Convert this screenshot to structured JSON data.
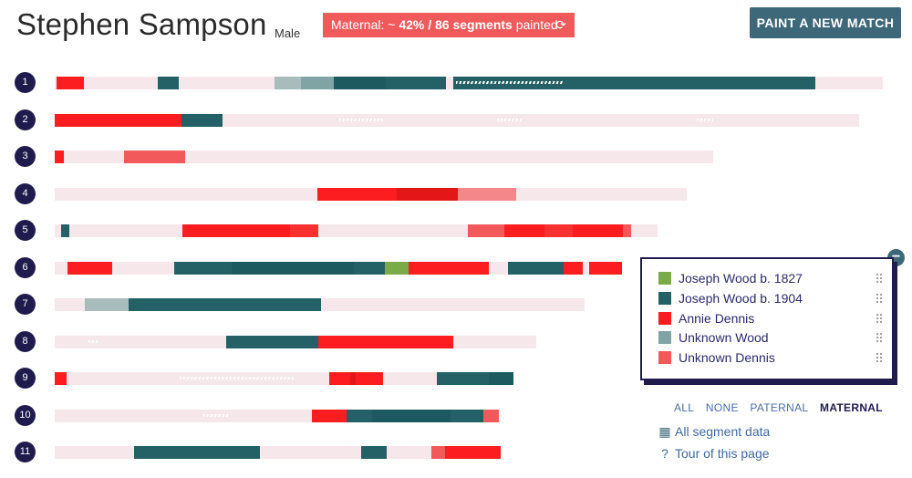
{
  "header": {
    "person_name": "Stephen Sampson",
    "gender": "Male",
    "maternal_prefix": "Maternal: ~ ",
    "maternal_stats": "42% / 86 segments",
    "maternal_suffix": " painted",
    "paint_button_label": "PAINT A NEW MATCH"
  },
  "icons": {
    "refresh": "refresh-icon",
    "collapse": "minus-circle-icon",
    "table": "table-icon",
    "help": "question-circle-icon",
    "drag": "drag-handle-icon"
  },
  "colors": {
    "track": "#f6e7ea",
    "joseph_1827": "#7aab48",
    "joseph_1904": "#236166",
    "annie": "#fb1d1f",
    "unknown_wood": "#80a3a3",
    "unknown_dennis": "#f1595a",
    "badge": "#f05a5b",
    "button": "#3d6879",
    "navy": "#1f1c4d"
  },
  "chromosomes": [
    {
      "label": "1",
      "track": [
        60,
        968
      ],
      "segments": [
        [
          62,
          92,
          "annie"
        ],
        [
          173,
          196,
          "joseph_1904"
        ],
        [
          301,
          330,
          "light_wood"
        ],
        [
          330,
          366,
          "unknown_wood"
        ],
        [
          366,
          423,
          "dark_wood"
        ],
        [
          423,
          489,
          "joseph_1904"
        ],
        [
          497,
          894,
          "joseph_1904"
        ]
      ],
      "hatches": [
        [
          500,
          618
        ]
      ]
    },
    {
      "label": "2",
      "track": [
        60,
        942
      ],
      "segments": [
        [
          60,
          199,
          "annie"
        ],
        [
          199,
          244,
          "joseph_1904"
        ]
      ],
      "hatches": [
        [
          372,
          420
        ],
        [
          545,
          574
        ],
        [
          764,
          782
        ]
      ]
    },
    {
      "label": "3",
      "track": [
        60,
        782
      ],
      "segments": [
        [
          60,
          70,
          "annie"
        ],
        [
          136,
          203,
          "unknown_dennis"
        ]
      ],
      "hatches": []
    },
    {
      "label": "4",
      "track": [
        60,
        753
      ],
      "segments": [
        [
          348,
          435,
          "annie"
        ],
        [
          435,
          502,
          "annie_dark"
        ],
        [
          502,
          566,
          "pink_dennis"
        ]
      ],
      "hatches": []
    },
    {
      "label": "5",
      "track": [
        60,
        721
      ],
      "segments": [
        [
          67,
          76,
          "joseph_1904"
        ],
        [
          200,
          318,
          "annie"
        ],
        [
          318,
          349,
          "annie_light"
        ],
        [
          513,
          553,
          "unknown_dennis"
        ],
        [
          553,
          597,
          "annie"
        ],
        [
          597,
          628,
          "annie_light"
        ],
        [
          628,
          683,
          "annie"
        ],
        [
          683,
          692,
          "unknown_dennis"
        ]
      ],
      "hatches": []
    },
    {
      "label": "6",
      "track": [
        60,
        682
      ],
      "segments": [
        [
          74,
          123,
          "annie"
        ],
        [
          191,
          254,
          "joseph_1904"
        ],
        [
          254,
          388,
          "dark_wood"
        ],
        [
          388,
          422,
          "joseph_1904"
        ],
        [
          422,
          448,
          "joseph_1827"
        ],
        [
          448,
          462,
          "annie"
        ],
        [
          462,
          536,
          "annie"
        ],
        [
          557,
          618,
          "joseph_1904"
        ],
        [
          618,
          639,
          "annie"
        ],
        [
          646,
          682,
          "annie"
        ]
      ],
      "hatches": []
    },
    {
      "label": "7",
      "track": [
        60,
        641
      ],
      "segments": [
        [
          93,
          141,
          "light_wood"
        ],
        [
          141,
          185,
          "joseph_1904"
        ],
        [
          185,
          352,
          "joseph_1904"
        ]
      ],
      "hatches": []
    },
    {
      "label": "8",
      "track": [
        60,
        588
      ],
      "segments": [
        [
          248,
          349,
          "joseph_1904"
        ],
        [
          349,
          497,
          "annie"
        ]
      ],
      "hatches": [
        [
          97,
          109
        ]
      ]
    },
    {
      "label": "9",
      "track": [
        60,
        563
      ],
      "segments": [
        [
          60,
          73,
          "annie"
        ],
        [
          361,
          384,
          "annie"
        ],
        [
          384,
          390,
          "annie_dark"
        ],
        [
          390,
          420,
          "annie"
        ],
        [
          479,
          536,
          "joseph_1904"
        ],
        [
          536,
          563,
          "dark_wood"
        ]
      ],
      "hatches": [
        [
          197,
          322
        ]
      ]
    },
    {
      "label": "10",
      "track": [
        60,
        547
      ],
      "segments": [
        [
          342,
          380,
          "annie"
        ],
        [
          380,
          408,
          "joseph_1904"
        ],
        [
          408,
          494,
          "dark_wood"
        ],
        [
          494,
          530,
          "joseph_1904"
        ],
        [
          530,
          547,
          "unknown_dennis"
        ]
      ],
      "hatches": [
        [
          223,
          252
        ]
      ]
    },
    {
      "label": "11",
      "track": [
        60,
        549
      ],
      "segments": [
        [
          147,
          285,
          "joseph_1904"
        ],
        [
          396,
          424,
          "joseph_1904"
        ],
        [
          473,
          488,
          "unknown_dennis"
        ],
        [
          488,
          534,
          "annie"
        ],
        [
          534,
          549,
          "annie"
        ]
      ],
      "hatches": []
    }
  ],
  "legend": {
    "items": [
      {
        "label": "Joseph Wood b. 1827",
        "color": "#7aab48"
      },
      {
        "label": "Joseph Wood b. 1904",
        "color": "#236166"
      },
      {
        "label": "Annie Dennis",
        "color": "#fb1d1f"
      },
      {
        "label": "Unknown Wood",
        "color": "#80a3a3"
      },
      {
        "label": "Unknown Dennis",
        "color": "#f1595a"
      }
    ]
  },
  "filters": {
    "all": "ALL",
    "none": "NONE",
    "paternal": "PATERNAL",
    "maternal": "MATERNAL",
    "active": "maternal"
  },
  "links": {
    "segment_data": "All segment data",
    "tour": "Tour of this page"
  }
}
